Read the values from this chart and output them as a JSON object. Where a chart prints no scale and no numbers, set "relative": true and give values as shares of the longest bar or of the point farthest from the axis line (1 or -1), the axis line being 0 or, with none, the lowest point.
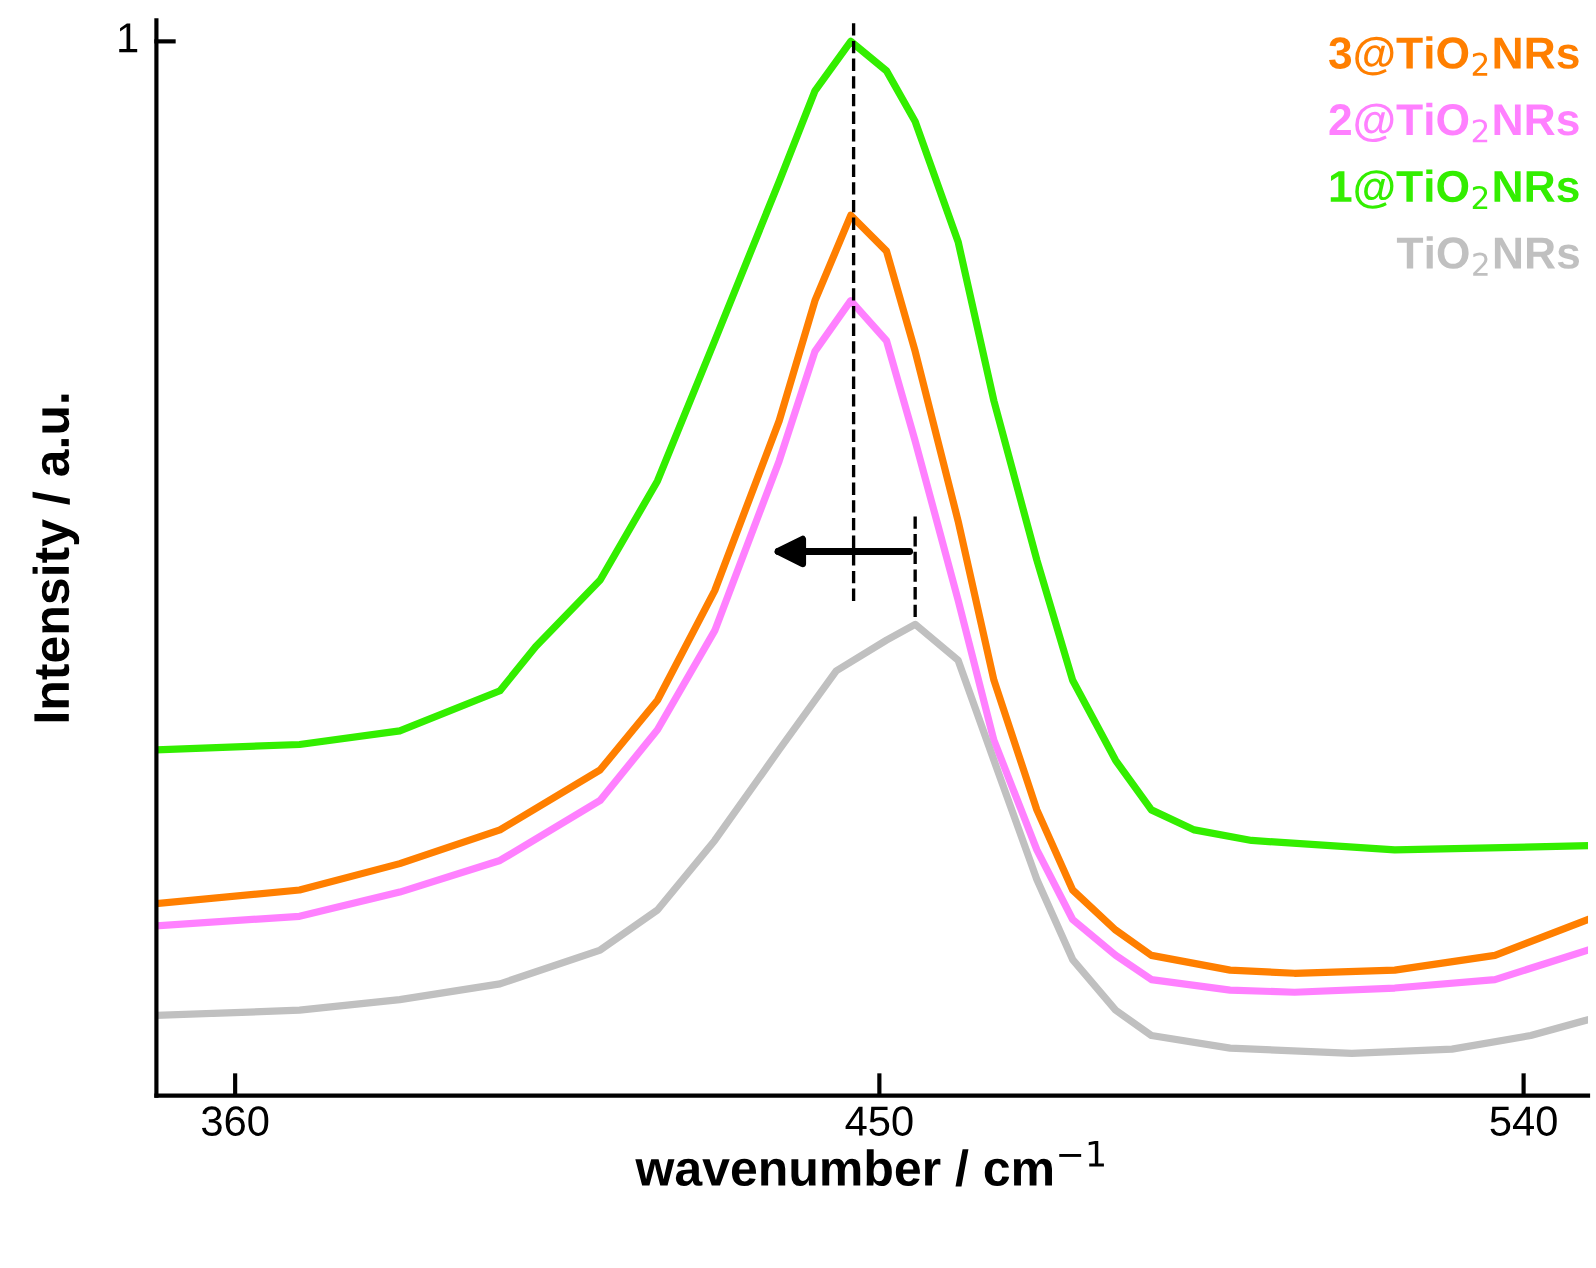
{
  "chart_data": {
    "type": "line",
    "relative": true,
    "xlabel": "wavenumber / cm$^{−1}$",
    "ylabel": "Intensity / a.u.",
    "xlim": [
      349,
      549
    ],
    "xticks": [
      360,
      450,
      540
    ],
    "grid": false,
    "legend": "top right",
    "marker": "none",
    "line_style": "solid",
    "annotations": [
      "1"
    ],
    "series": [
      {
        "name": "3@TiO$_{2}$NRs",
        "color": "#ff7f00",
        "x": [
          349,
          369,
          383,
          397,
          411,
          419,
          427,
          436,
          441,
          446,
          451,
          455,
          461,
          466,
          472,
          477,
          483,
          488,
          499,
          508,
          522,
          536,
          549
        ],
        "values": [
          0.182,
          0.195,
          0.22,
          0.252,
          0.309,
          0.375,
          0.479,
          0.64,
          0.754,
          0.835,
          0.801,
          0.706,
          0.545,
          0.394,
          0.271,
          0.195,
          0.157,
          0.133,
          0.119,
          0.116,
          0.119,
          0.133,
          0.167
        ]
      },
      {
        "name": "2@TiO$_{2}$NRs",
        "color": "#ff80ff",
        "x": [
          349,
          369,
          383,
          397,
          411,
          419,
          427,
          436,
          441,
          446,
          451,
          455,
          461,
          466,
          472,
          477,
          483,
          488,
          499,
          508,
          522,
          536,
          549
        ],
        "values": [
          0.161,
          0.17,
          0.193,
          0.223,
          0.28,
          0.347,
          0.441,
          0.602,
          0.706,
          0.754,
          0.716,
          0.621,
          0.47,
          0.337,
          0.233,
          0.167,
          0.133,
          0.11,
          0.1,
          0.098,
          0.102,
          0.11,
          0.138
        ]
      },
      {
        "name": "1@TiO$_{2}$NRs",
        "color": "#33ee00",
        "x": [
          349,
          369,
          383,
          397,
          402,
          411,
          419,
          427,
          436,
          441,
          446,
          451,
          455,
          461,
          466,
          472,
          477,
          483,
          488,
          494,
          502,
          522,
          549
        ],
        "values": [
          0.328,
          0.333,
          0.346,
          0.384,
          0.426,
          0.489,
          0.583,
          0.716,
          0.867,
          0.953,
          1.0,
          0.972,
          0.924,
          0.81,
          0.659,
          0.508,
          0.394,
          0.318,
          0.271,
          0.252,
          0.242,
          0.233,
          0.237
        ]
      },
      {
        "name": "TiO$_{2}$NRs",
        "color": "#c0c0c0",
        "x": [
          349,
          369,
          383,
          397,
          411,
          419,
          427,
          436,
          444,
          451,
          455,
          461,
          466,
          472,
          477,
          483,
          488,
          499,
          516,
          530,
          541,
          549
        ],
        "values": [
          0.076,
          0.081,
          0.091,
          0.106,
          0.138,
          0.176,
          0.242,
          0.328,
          0.403,
          0.432,
          0.447,
          0.413,
          0.318,
          0.205,
          0.129,
          0.081,
          0.057,
          0.045,
          0.04,
          0.044,
          0.057,
          0.072
        ]
      }
    ]
  }
}
